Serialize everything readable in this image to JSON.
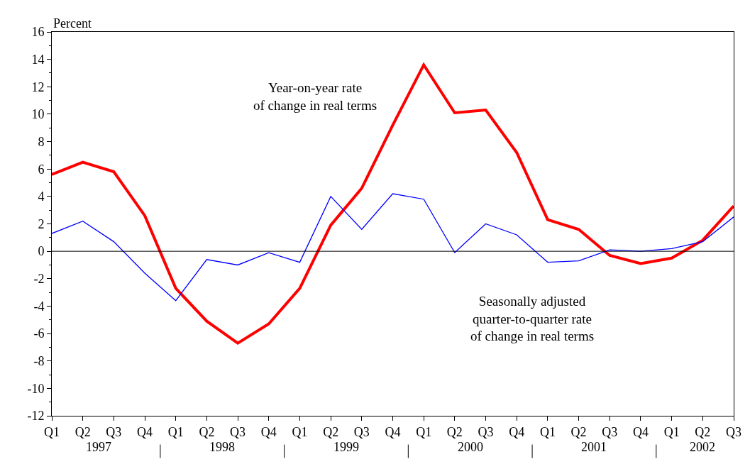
{
  "chart_data": {
    "type": "line",
    "ylabel": "Percent",
    "categories": [
      "Q1",
      "Q2",
      "Q3",
      "Q4",
      "Q1",
      "Q2",
      "Q3",
      "Q4",
      "Q1",
      "Q2",
      "Q3",
      "Q4",
      "Q1",
      "Q2",
      "Q3",
      "Q4",
      "Q1",
      "Q2",
      "Q3",
      "Q4",
      "Q1",
      "Q2",
      "Q3"
    ],
    "series": [
      {
        "name": "Year-on-year rate\nof change in real terms",
        "color": "#ff0000",
        "values": [
          5.6,
          6.5,
          5.8,
          2.6,
          -2.7,
          -5.1,
          -6.7,
          -5.3,
          -2.7,
          1.9,
          4.6,
          9.2,
          13.6,
          10.1,
          10.3,
          7.2,
          2.3,
          1.6,
          -0.3,
          -0.9,
          -0.5,
          0.8,
          3.3
        ]
      },
      {
        "name": "Seasonally adjusted\nquarter-to-quarter rate\nof change in real terms",
        "color": "#0000ff",
        "values": [
          1.3,
          2.2,
          0.7,
          -1.6,
          -3.6,
          -0.6,
          -1.0,
          -0.1,
          -0.8,
          4.0,
          1.6,
          4.2,
          3.8,
          -0.1,
          2.0,
          1.2,
          -0.8,
          -0.7,
          0.1,
          0.0,
          0.2,
          0.7,
          2.5
        ]
      }
    ],
    "annotations": [
      "1997",
      "1998",
      "1999",
      "2000",
      "2001",
      "2002"
    ],
    "ylim": [
      -12,
      16
    ],
    "yticks": [
      -12,
      -10,
      -8,
      -6,
      -4,
      -2,
      0,
      2,
      4,
      6,
      8,
      10,
      12,
      14,
      16
    ],
    "ref_lines": [
      {
        "axis": "y",
        "value": 0,
        "color": "#000000"
      }
    ],
    "legend": false,
    "marker": "none",
    "line_style": "solid"
  }
}
